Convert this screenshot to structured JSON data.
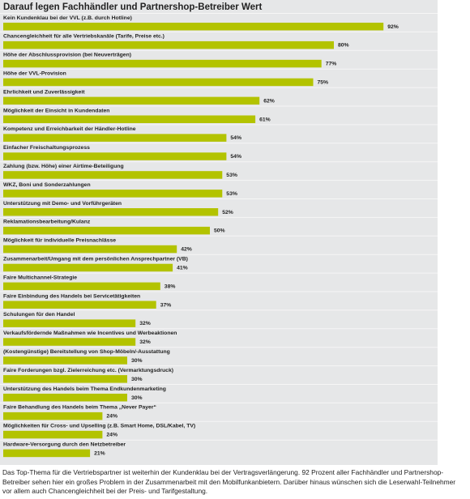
{
  "chart_data": {
    "type": "bar",
    "title": "Darauf legen Fachhändler und Partnershop-Betreiber Wert",
    "categories": [
      "Kein Kundenklau bei der VVL (z.B. durch Hotline)",
      "Chancengleichheit für alle Vertriebskanäle (Tarife, Preise etc.)",
      "Höhe der Abschlussprovision (bei Neuverträgen)",
      "Höhe der VVL-Provision",
      "Ehrlichkeit und Zuverlässigkeit",
      "Möglichkeit der Einsicht in Kundendaten",
      "Kompetenz und Erreichbarkeit der Händler-Hotline",
      "Einfacher Freischaltungsprozess",
      "Zahlung (bzw. Höhe) einer Airtime-Beteiligung",
      "WKZ, Boni und Sonderzahlungen",
      "Unterstützung mit Demo- und Vorführgeräten",
      "Reklamationsbearbeitung/Kulanz",
      "Möglichkeit für individuelle Preisnachlässe",
      "Zusammenarbeit/Umgang mit dem persönlichen Ansprechpartner (VB)",
      "Faire Multichannel-Strategie",
      "Faire Einbindung des Handels bei Servicetätigkeiten",
      "Schulungen für den Handel",
      "Verkaufsfördernde Maßnahmen wie Incentives und Werbeaktionen",
      "(Kostengünstige) Bereitstellung von Shop-Möbeln/-Ausstattung",
      "Faire Forderungen bzgl. Zielerreichung etc. (Vermarktungsdruck)",
      "Unterstützung des Handels beim Thema Endkundenmarketing",
      "Faire Behandlung des Handels beim Thema „Never Payer“",
      "Möglichkeiten für Cross- und Upselling (z.B. Smart Home, DSL/Kabel, TV)",
      "Hardware-Versorgung durch den Netzbetreiber"
    ],
    "values": [
      92,
      80,
      77,
      75,
      62,
      61,
      54,
      54,
      53,
      53,
      52,
      50,
      42,
      41,
      38,
      37,
      32,
      32,
      30,
      30,
      30,
      24,
      24,
      21
    ],
    "value_labels": [
      "92%",
      "80%",
      "77%",
      "75%",
      "62%",
      "61%",
      "54%",
      "54%",
      "53%",
      "53%",
      "52%",
      "50%",
      "42%",
      "41%",
      "38%",
      "37%",
      "32%",
      "32%",
      "30%",
      "30%",
      "30%",
      "24%",
      "24%",
      "21%"
    ],
    "color": "#b3c300",
    "footer": "Das Top-Thema für die Vertriebspartner ist weiterhin der Kundenklau bei der Vertragsverlängerung. 92 Prozent aller Fachhändler und Partnershop-Betreiber sehen hier ein großes Problem in der Zusammenarbeit mit den Mobilfunkanbietern. Darüber hinaus wünschen sich die Leserwahl-Teilnehmer vor allem auch Chancengleichheit bei der Preis- und Tarifgestaltung."
  }
}
